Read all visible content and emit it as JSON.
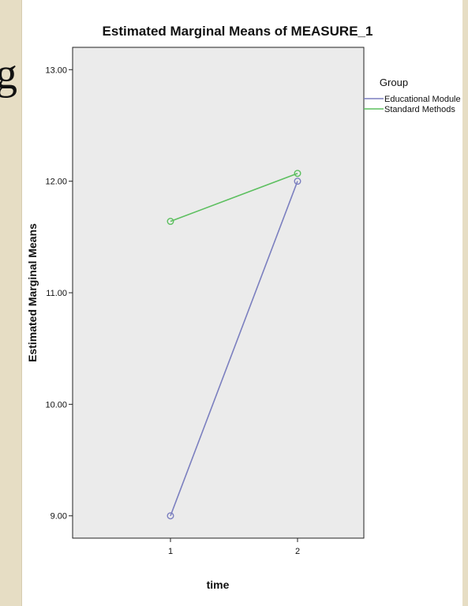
{
  "slide": {
    "letter": "g"
  },
  "chart_data": {
    "type": "line",
    "title": "Estimated Marginal Means of MEASURE_1",
    "xlabel": "time",
    "ylabel": "Estimated Marginal Means",
    "categories": [
      "1",
      "2"
    ],
    "ylim": [
      8.8,
      13.2
    ],
    "y_ticks": [
      9.0,
      10.0,
      11.0,
      12.0,
      13.0
    ],
    "y_tick_labels": [
      "9.00",
      "10.00",
      "11.00",
      "12.00",
      "13.00"
    ],
    "grid": false,
    "plot_background": "#ebebeb",
    "legend": {
      "title": "Group",
      "placement": "right"
    },
    "series": [
      {
        "name": "Educational Module",
        "color": "#7b7fbf",
        "values": [
          9.0,
          12.0
        ]
      },
      {
        "name": "Standard Methods",
        "color": "#5cbf5f",
        "values": [
          11.64,
          12.07
        ]
      }
    ]
  }
}
